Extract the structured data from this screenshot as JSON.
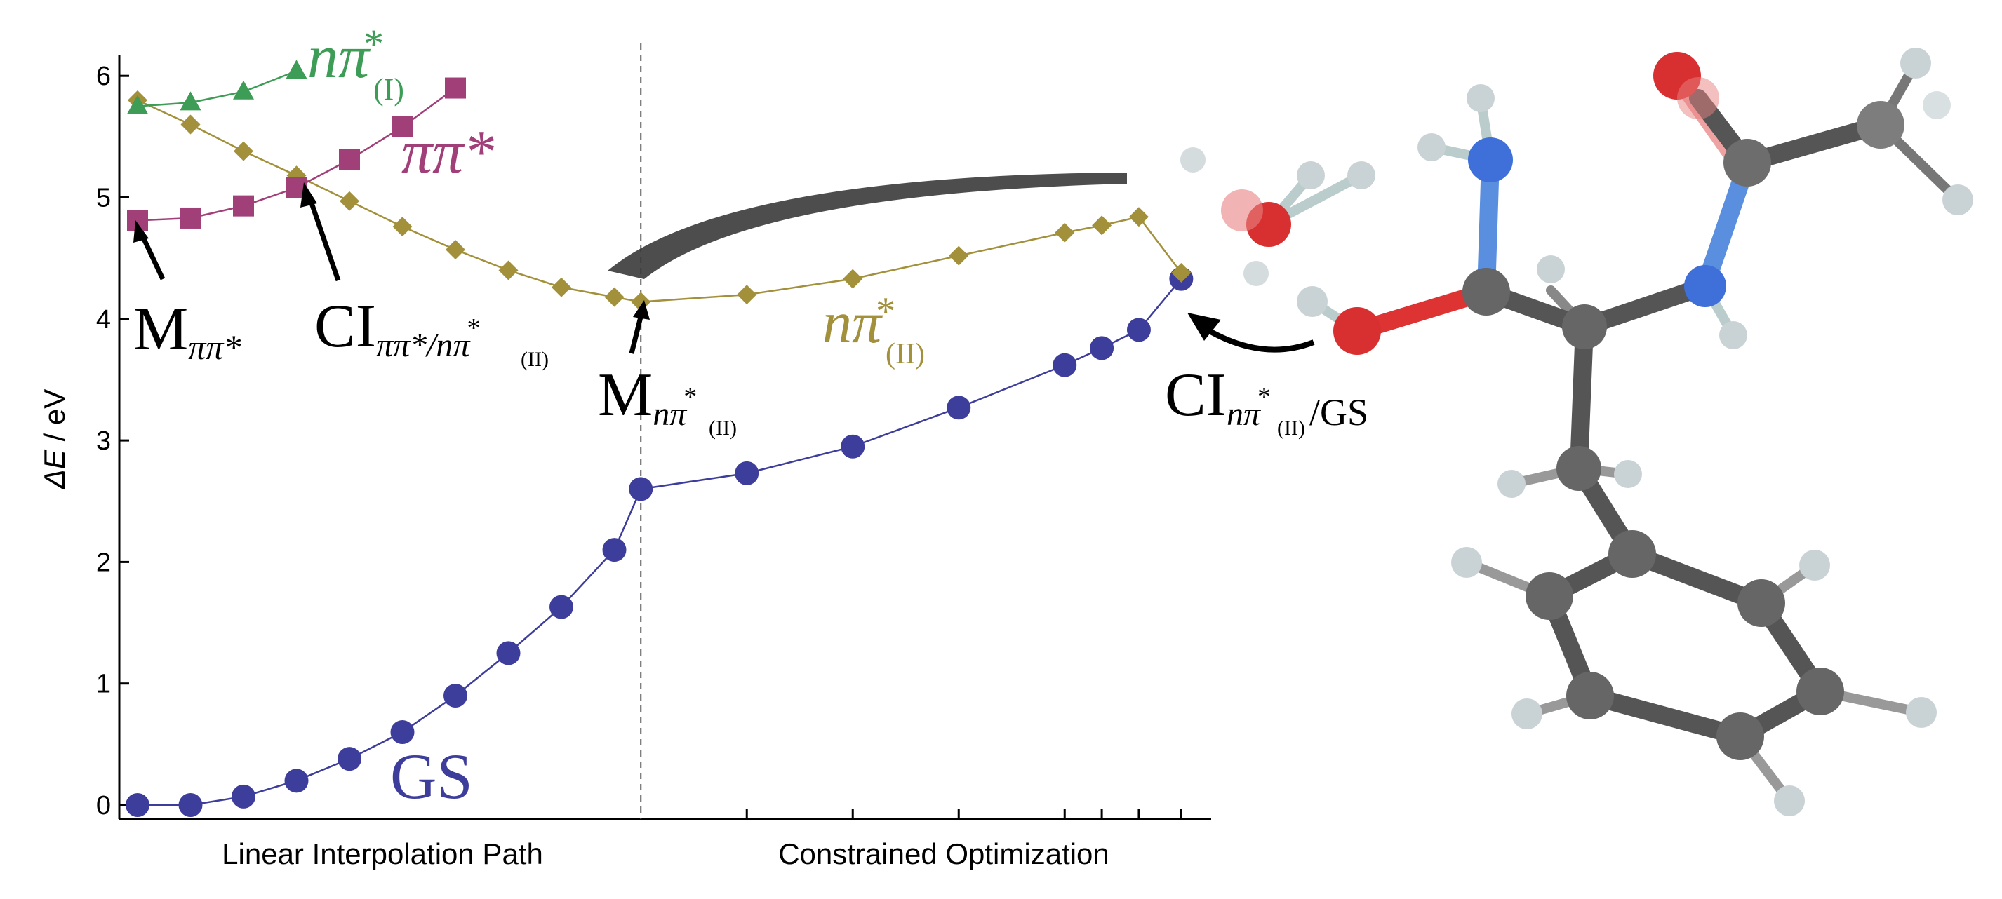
{
  "chart_data": {
    "type": "line",
    "ylabel_prefix": "ΔE",
    "ylabel_suffix": " / eV",
    "ylim": [
      0,
      6.2
    ],
    "yticks": [
      0,
      1,
      2,
      3,
      4,
      5,
      6
    ],
    "x_range": [
      0,
      20
    ],
    "divider_x": 9.5,
    "x_section_labels": [
      "Linear Interpolation Path",
      "Constrained Optimization"
    ],
    "grid": false,
    "colors": {
      "GS": "#3d3d9b",
      "npi2": "#a3903a",
      "pipi": "#a13f78",
      "npi1": "#3d9c55"
    },
    "series": [
      {
        "key": "GS",
        "marker": "circle",
        "x": [
          0,
          1,
          2,
          3,
          4,
          5,
          6,
          7,
          8,
          9,
          9.5,
          11.5,
          13.5,
          15.5,
          17.5,
          18.2,
          18.9,
          19.7
        ],
        "y": [
          0.0,
          0.0,
          0.07,
          0.2,
          0.38,
          0.6,
          0.9,
          1.25,
          1.63,
          2.1,
          2.6,
          2.73,
          2.95,
          3.27,
          3.62,
          3.76,
          3.91,
          4.33
        ]
      },
      {
        "key": "npi2",
        "marker": "diamond",
        "x": [
          0,
          1,
          2,
          3,
          4,
          5,
          6,
          7,
          8,
          9,
          9.5,
          11.5,
          13.5,
          15.5,
          17.5,
          18.2,
          18.9,
          19.7
        ],
        "y": [
          5.8,
          5.6,
          5.38,
          5.18,
          4.97,
          4.76,
          4.57,
          4.4,
          4.26,
          4.18,
          4.14,
          4.2,
          4.33,
          4.52,
          4.71,
          4.77,
          4.84,
          4.38
        ]
      },
      {
        "key": "pipi",
        "marker": "square",
        "x": [
          0,
          1,
          2,
          3,
          4,
          5,
          6
        ],
        "y": [
          4.81,
          4.83,
          4.93,
          5.08,
          5.31,
          5.58,
          5.9
        ]
      },
      {
        "key": "npi1",
        "marker": "triangle",
        "x": [
          0,
          1,
          2,
          3
        ],
        "y": [
          5.75,
          5.78,
          5.87,
          6.04
        ]
      }
    ],
    "series_labels": {
      "npi1": {
        "n": "n",
        "pi": "π",
        "star": "*",
        "sub": "(I)"
      },
      "pipi": {
        "text": "ππ*"
      },
      "npi2": {
        "n": "n",
        "pi": "π",
        "star": "*",
        "sub": "(II)"
      },
      "GS": {
        "text": "GS"
      }
    },
    "annotations": {
      "m_pipi": {
        "main": "M",
        "sub": "ππ*"
      },
      "ci_pipi_npi": {
        "main": "CI",
        "sub1": "ππ*/nπ",
        "star": "*",
        "sub2": "(II)"
      },
      "m_npi": {
        "main": "M",
        "sub1": "nπ",
        "star": "*",
        "sub2": "(II)"
      },
      "ci_npi_gs": {
        "main": "CI",
        "sub1": "nπ",
        "star": "*",
        "sub2": "(II)",
        "sub3": "/GS"
      }
    }
  }
}
